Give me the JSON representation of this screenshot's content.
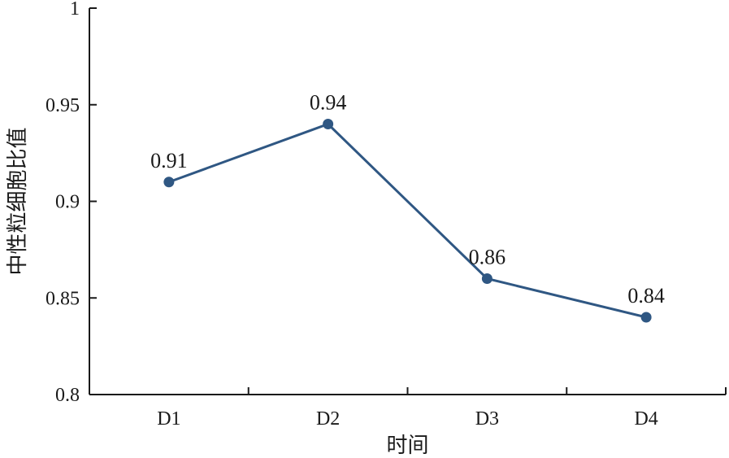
{
  "chart_data": {
    "type": "line",
    "categories": [
      "D1",
      "D2",
      "D3",
      "D4"
    ],
    "series": [
      {
        "values": [
          0.91,
          0.94,
          0.86,
          0.84
        ]
      }
    ],
    "data_labels": [
      "0.91",
      "0.94",
      "0.86",
      "0.84"
    ],
    "xlabel": "时间",
    "ylabel": "中性粒细胞比值",
    "ylim": [
      0.8,
      1.0
    ],
    "yticks": [
      0.8,
      0.85,
      0.9,
      0.95,
      1.0
    ],
    "ytick_labels": [
      "0.8",
      "0.85",
      "0.9",
      "0.95",
      "1"
    ],
    "grid": false,
    "legend": "none",
    "colors": {
      "series": "#2f5783",
      "axis": "#1a1a1a"
    }
  }
}
